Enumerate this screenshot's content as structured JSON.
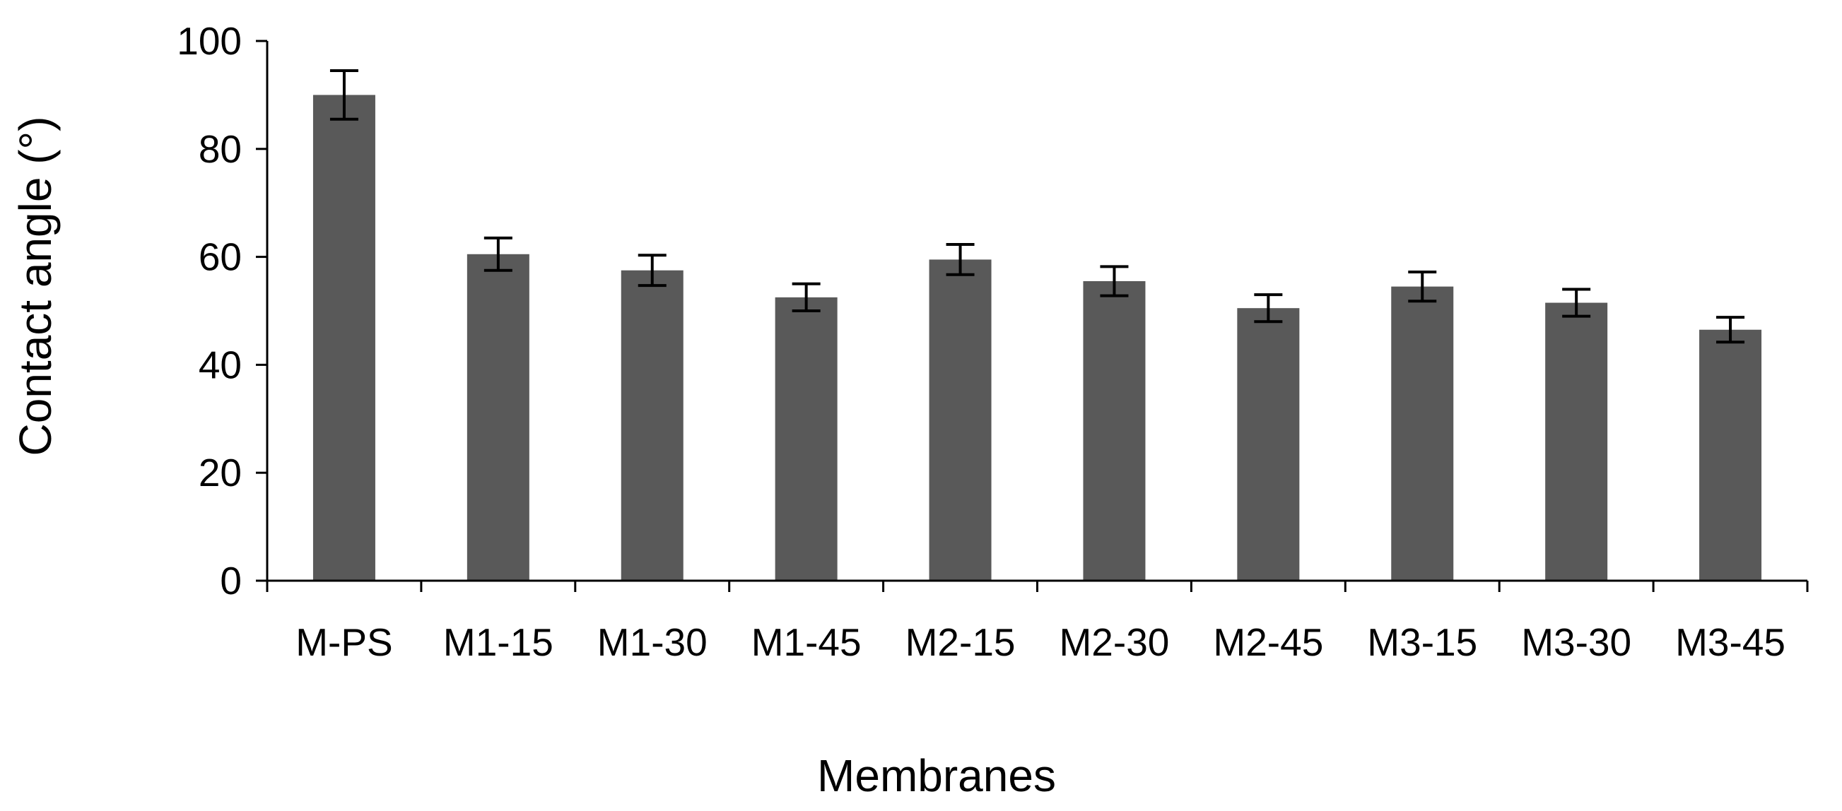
{
  "chart_data": {
    "type": "bar",
    "title": "",
    "xlabel": "Membranes",
    "ylabel": "Contact angle (°)",
    "categories": [
      "M-PS",
      "M1-15",
      "M1-30",
      "M1-45",
      "M2-15",
      "M2-30",
      "M2-45",
      "M3-15",
      "M3-30",
      "M3-45"
    ],
    "series": [
      {
        "name": "Contact angle",
        "values": [
          90,
          60.5,
          57.5,
          52.5,
          59.5,
          55.5,
          50.5,
          54.5,
          51.5,
          46.5
        ],
        "errors": [
          4.5,
          3,
          2.8,
          2.5,
          2.8,
          2.7,
          2.5,
          2.7,
          2.5,
          2.3
        ]
      }
    ],
    "ylim": [
      0,
      100
    ],
    "yticks": [
      0,
      20,
      40,
      60,
      80,
      100
    ],
    "grid": false,
    "legend": "none",
    "colors": {
      "bar": "#595959",
      "axis": "#000000",
      "error_bar": "#000000"
    }
  }
}
